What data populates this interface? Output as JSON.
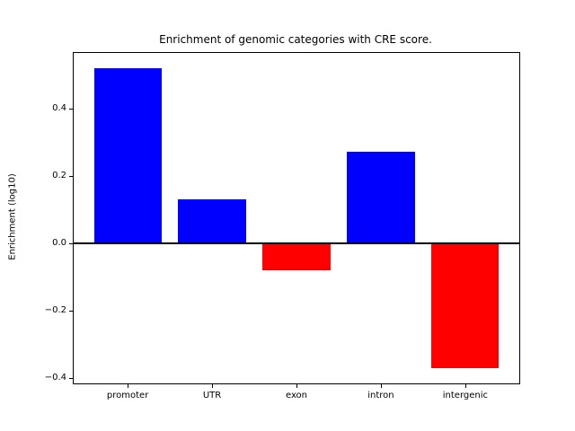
{
  "title": "Enrichment of genomic categories with CRE score.",
  "chart_data": {
    "type": "bar",
    "title": "Enrichment of genomic categories with CRE score.",
    "xlabel": "",
    "ylabel": "Enrichment (log10)",
    "categories": [
      "promoter",
      "UTR",
      "exon",
      "intron",
      "intergenic"
    ],
    "values": [
      0.52,
      0.13,
      -0.08,
      0.27,
      -0.37
    ],
    "bar_colors": [
      "#0000ff",
      "#0000ff",
      "#ff0000",
      "#0000ff",
      "#ff0000"
    ],
    "positive_color": "#0000ff",
    "negative_color": "#ff0000",
    "bar_width_units": 0.8,
    "ylim": [
      -0.416,
      0.564
    ],
    "xlim": [
      -0.64,
      4.64
    ],
    "yticks": [
      0.4,
      0.2,
      0.0,
      -0.2,
      -0.4
    ],
    "ytick_labels": [
      "0.4",
      "0.2",
      "0.0",
      "−0.2",
      "−0.4"
    ],
    "zero_line": true,
    "grid": false,
    "legend": null
  }
}
